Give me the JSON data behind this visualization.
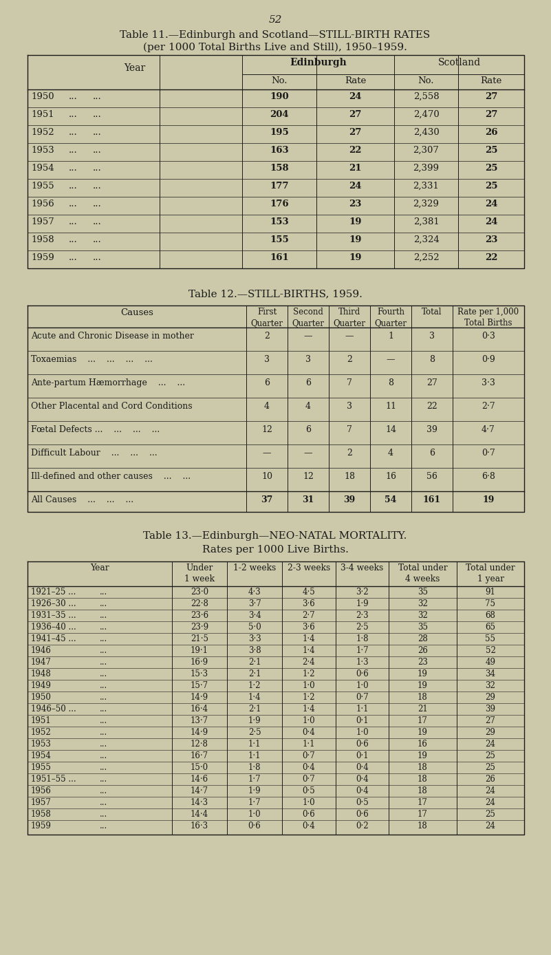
{
  "page_number": "52",
  "bg_color": "#ccc9aa",
  "text_color": "#1a1a1a",
  "table11": {
    "title_line1": "Table 11.—Edinburgh and Scotland—STILL-BIRTH RATES",
    "title_line2": "(per 1000 Total Births Live and Still), 1950–1959.",
    "rows": [
      [
        "1950",
        "190",
        "24",
        "2,558",
        "27"
      ],
      [
        "1951",
        "204",
        "27",
        "2,470",
        "27"
      ],
      [
        "1952",
        "195",
        "27",
        "2,430",
        "26"
      ],
      [
        "1953",
        "163",
        "22",
        "2,307",
        "25"
      ],
      [
        "1954",
        "158",
        "21",
        "2,399",
        "25"
      ],
      [
        "1955",
        "177",
        "24",
        "2,331",
        "25"
      ],
      [
        "1956",
        "176",
        "23",
        "2,329",
        "24"
      ],
      [
        "1957",
        "153",
        "19",
        "2,381",
        "24"
      ],
      [
        "1958",
        "155",
        "19",
        "2,324",
        "23"
      ],
      [
        "1959",
        "161",
        "19",
        "2,252",
        "22"
      ]
    ]
  },
  "table12": {
    "title": "Table 12.—STILL-BIRTHS, 1959.",
    "rows": [
      [
        "Acute and Chronic Disease in mother",
        "2",
        "—",
        "—",
        "1",
        "3",
        "0·3"
      ],
      [
        "Toxaemias    ...    ...    ...    ...",
        "3",
        "3",
        "2",
        "—",
        "8",
        "0·9"
      ],
      [
        "Ante-partum Hæmorrhage    ...    ...",
        "6",
        "6",
        "7",
        "8",
        "27",
        "3·3"
      ],
      [
        "Other Placental and Cord Conditions",
        "4",
        "4",
        "3",
        "11",
        "22",
        "2·7"
      ],
      [
        "Fœtal Defects ...    ...    ...    ...",
        "12",
        "6",
        "7",
        "14",
        "39",
        "4·7"
      ],
      [
        "Difficult Labour    ...    ...    ...",
        "—",
        "—",
        "2",
        "4",
        "6",
        "0·7"
      ],
      [
        "Ill-defined and other causes    ...    ...",
        "10",
        "12",
        "18",
        "16",
        "56",
        "6·8"
      ],
      [
        "All Causes    ...    ...    ...",
        "37",
        "31",
        "39",
        "54",
        "161",
        "19"
      ]
    ]
  },
  "table13": {
    "title_line1": "Table 13.—Edinburgh—NEO-NATAL MORTALITY.",
    "title_line2": "Rates per 1000 Live Births.",
    "rows": [
      [
        "1921–25 ...",
        "...",
        "23·0",
        "4·3",
        "4·5",
        "3·2",
        "35",
        "91"
      ],
      [
        "1926–30 ...",
        "...",
        "22·8",
        "3·7",
        "3·6",
        "1·9",
        "32",
        "75"
      ],
      [
        "1931–35 ...",
        "...",
        "23·6",
        "3·4",
        "2·7",
        "2·3",
        "32",
        "68"
      ],
      [
        "1936–40 ...",
        "...",
        "23·9",
        "5·0",
        "3·6",
        "2·5",
        "35",
        "65"
      ],
      [
        "1941–45 ...",
        "...",
        "21·5",
        "3·3",
        "1·4",
        "1·8",
        "28",
        "55"
      ],
      [
        "1946",
        "...",
        "19·1",
        "3·8",
        "1·4",
        "1·7",
        "26",
        "52"
      ],
      [
        "1947",
        "...",
        "16·9",
        "2·1",
        "2·4",
        "1·3",
        "23",
        "49"
      ],
      [
        "1948",
        "...",
        "15·3",
        "2·1",
        "1·2",
        "0·6",
        "19",
        "34"
      ],
      [
        "1949",
        "...",
        "15·7",
        "1·2",
        "1·0",
        "1·0",
        "19",
        "32"
      ],
      [
        "1950",
        "...",
        "14·9",
        "1·4",
        "1·2",
        "0·7",
        "18",
        "29"
      ],
      [
        "1946–50 ...",
        "...",
        "16·4",
        "2·1",
        "1·4",
        "1·1",
        "21",
        "39"
      ],
      [
        "1951",
        "...",
        "13·7",
        "1·9",
        "1·0",
        "0·1",
        "17",
        "27"
      ],
      [
        "1952",
        "...",
        "14·9",
        "2·5",
        "0·4",
        "1·0",
        "19",
        "29"
      ],
      [
        "1953",
        "...",
        "12·8",
        "1·1",
        "1·1",
        "0·6",
        "16",
        "24"
      ],
      [
        "1954",
        "...",
        "16·7",
        "1·1",
        "0·7",
        "0·1",
        "19",
        "25"
      ],
      [
        "1955",
        "...",
        "15·0",
        "1·8",
        "0·4",
        "0·4",
        "18",
        "25"
      ],
      [
        "1951–55 ...",
        "...",
        "14·6",
        "1·7",
        "0·7",
        "0·4",
        "18",
        "26"
      ],
      [
        "1956",
        "...",
        "14·7",
        "1·9",
        "0·5",
        "0·4",
        "18",
        "24"
      ],
      [
        "1957",
        "...",
        "14·3",
        "1·7",
        "1·0",
        "0·5",
        "17",
        "24"
      ],
      [
        "1958",
        "...",
        "14·4",
        "1·0",
        "0·6",
        "0·6",
        "17",
        "25"
      ],
      [
        "1959",
        "...",
        "16·3",
        "0·6",
        "0·4",
        "0·2",
        "18",
        "24"
      ]
    ]
  }
}
